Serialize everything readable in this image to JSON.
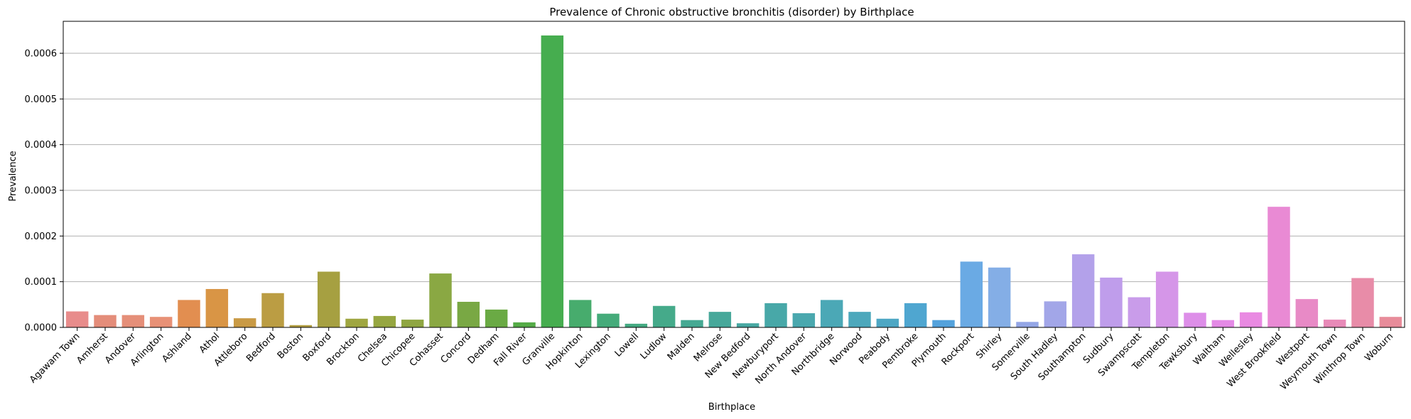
{
  "chart_data": {
    "type": "bar",
    "title": "Prevalence of Chronic obstructive bronchitis (disorder) by Birthplace",
    "xlabel": "Birthplace",
    "ylabel": "Prevalence",
    "ylim": [
      0,
      0.00067
    ],
    "yticks": [
      "0.0000",
      "0.0001",
      "0.0002",
      "0.0003",
      "0.0004",
      "0.0005",
      "0.0006"
    ],
    "ytick_values": [
      0,
      0.0001,
      0.0002,
      0.0003,
      0.0004,
      0.0005,
      0.0006
    ],
    "grid": "horizontal",
    "categories": [
      "Agawam Town",
      "Amherst",
      "Andover",
      "Arlington",
      "Ashland",
      "Athol",
      "Attleboro",
      "Bedford",
      "Boston",
      "Boxford",
      "Brockton",
      "Chelsea",
      "Chicopee",
      "Cohasset",
      "Concord",
      "Dedham",
      "Fall River",
      "Granville",
      "Hopkinton",
      "Lexington",
      "Lowell",
      "Ludlow",
      "Malden",
      "Melrose",
      "New Bedford",
      "Newburyport",
      "North Andover",
      "Northbridge",
      "Norwood",
      "Peabody",
      "Pembroke",
      "Plymouth",
      "Rockport",
      "Shirley",
      "Somerville",
      "South Hadley",
      "Southampton",
      "Sudbury",
      "Swampscott",
      "Templeton",
      "Tewksbury",
      "Waltham",
      "Wellesley",
      "West Brookfield",
      "Westport",
      "Weymouth Town",
      "Winthrop Town",
      "Woburn"
    ],
    "values": [
      3.5e-05,
      2.7e-05,
      2.7e-05,
      2.3e-05,
      6e-05,
      8.4e-05,
      2e-05,
      7.5e-05,
      5e-06,
      0.000122,
      1.9e-05,
      2.5e-05,
      1.7e-05,
      0.000118,
      5.6e-05,
      3.9e-05,
      1.1e-05,
      0.000639,
      6e-05,
      3e-05,
      8e-06,
      4.7e-05,
      1.6e-05,
      3.4e-05,
      9e-06,
      5.3e-05,
      3.1e-05,
      6e-05,
      3.4e-05,
      1.9e-05,
      5.3e-05,
      1.6e-05,
      0.000144,
      0.000131,
      1.2e-05,
      5.7e-05,
      0.00016,
      0.000109,
      6.6e-05,
      0.000122,
      3.2e-05,
      1.6e-05,
      3.3e-05,
      0.000264,
      6.2e-05,
      1.7e-05,
      0.000108,
      2.3e-05
    ],
    "colors": [
      "#e88c8b",
      "#e48d7a",
      "#e58f79",
      "#e89176",
      "#e28e50",
      "#d99545",
      "#c99a45",
      "#bb9d43",
      "#b39f42",
      "#a6a041",
      "#9fa641",
      "#96a641",
      "#8fa642",
      "#8aa843",
      "#79a844",
      "#6aaa44",
      "#55ab47",
      "#46ad4f",
      "#47ac6d",
      "#45ab7a",
      "#44aa82",
      "#45aa8a",
      "#46a993",
      "#47a89a",
      "#47a8a2",
      "#48a8a8",
      "#4aa8ae",
      "#4ba8b6",
      "#4da8bc",
      "#4ea7c4",
      "#4fa6d0",
      "#54a2dc",
      "#6aaae4",
      "#84aee6",
      "#94a6e6",
      "#a2a6e8",
      "#b3a1ea",
      "#bf9deb",
      "#c99cea",
      "#d596e8",
      "#dd8ee8",
      "#e48ae6",
      "#e98ae2",
      "#e98ad4",
      "#e88ac6",
      "#e88ab8",
      "#e88ca8",
      "#e88c9a"
    ]
  }
}
